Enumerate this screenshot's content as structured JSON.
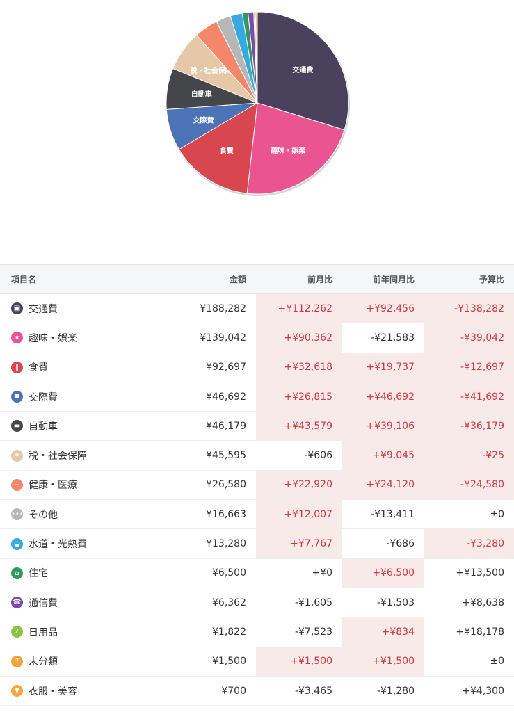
{
  "chart_data": {
    "type": "pie",
    "slices": [
      {
        "label": "交通費",
        "value": 188282,
        "color": "#4a425c",
        "show_label": true
      },
      {
        "label": "趣味・娯楽",
        "value": 139042,
        "color": "#ea5591",
        "show_label": true
      },
      {
        "label": "食費",
        "value": 92697,
        "color": "#d8474f",
        "show_label": true
      },
      {
        "label": "交際費",
        "value": 46692,
        "color": "#4c73b5",
        "show_label": true
      },
      {
        "label": "自動車",
        "value": 46179,
        "color": "#45464a",
        "show_label": true
      },
      {
        "label": "税・社会保障",
        "value": 45595,
        "color": "#e4c8a7",
        "show_label": true
      },
      {
        "label": "健康・医療",
        "value": 26580,
        "color": "#f4876a",
        "show_label": false
      },
      {
        "label": "その他",
        "value": 16663,
        "color": "#b7b7b7",
        "show_label": false
      },
      {
        "label": "水道・光熱費",
        "value": 13280,
        "color": "#36a9df",
        "show_label": false
      },
      {
        "label": "住宅",
        "value": 6500,
        "color": "#2f9a5e",
        "show_label": false
      },
      {
        "label": "通信費",
        "value": 6362,
        "color": "#8048b0",
        "show_label": false
      },
      {
        "label": "日用品",
        "value": 1822,
        "color": "#8bc34a",
        "show_label": false
      },
      {
        "label": "未分類",
        "value": 1500,
        "color": "#f2a33a",
        "show_label": false
      },
      {
        "label": "衣服・美容",
        "value": 700,
        "color": "#f4a73a",
        "show_label": false
      }
    ]
  },
  "table": {
    "headers": {
      "name": "項目名",
      "amount": "金額",
      "prev_month": "前月比",
      "prev_year": "前年同月比",
      "budget": "予算比"
    },
    "rows": [
      {
        "icon": "train-icon",
        "icon_glyph": "▣",
        "icon_color": "#4a425c",
        "name": "交通費",
        "amount": "¥188,282",
        "prev_month": "+¥112,262",
        "prev_month_hl": true,
        "prev_year": "+¥92,456",
        "prev_year_hl": true,
        "budget": "-¥138,282",
        "budget_hl": true
      },
      {
        "icon": "star-icon",
        "icon_glyph": "★",
        "icon_color": "#ea5591",
        "name": "趣味・娯楽",
        "amount": "¥139,042",
        "prev_month": "+¥90,362",
        "prev_month_hl": true,
        "prev_year": "-¥21,583",
        "prev_year_hl": false,
        "budget": "-¥39,042",
        "budget_hl": true
      },
      {
        "icon": "fork-knife-icon",
        "icon_glyph": "‖",
        "icon_color": "#d8474f",
        "name": "食費",
        "amount": "¥92,697",
        "prev_month": "+¥32,618",
        "prev_month_hl": true,
        "prev_year": "+¥19,737",
        "prev_year_hl": true,
        "budget": "-¥12,697",
        "budget_hl": true
      },
      {
        "icon": "people-icon",
        "icon_glyph": "☗",
        "icon_color": "#4c73b5",
        "name": "交際費",
        "amount": "¥46,692",
        "prev_month": "+¥26,815",
        "prev_month_hl": true,
        "prev_year": "+¥46,692",
        "prev_year_hl": true,
        "budget": "-¥41,692",
        "budget_hl": true
      },
      {
        "icon": "car-icon",
        "icon_glyph": "▬",
        "icon_color": "#45464a",
        "name": "自動車",
        "amount": "¥46,179",
        "prev_month": "+¥43,579",
        "prev_month_hl": true,
        "prev_year": "+¥39,106",
        "prev_year_hl": true,
        "budget": "-¥36,179",
        "budget_hl": true
      },
      {
        "icon": "coin-icon",
        "icon_glyph": "¥",
        "icon_color": "#e4c8a7",
        "name": "税・社会保障",
        "amount": "¥45,595",
        "prev_month": "-¥606",
        "prev_month_hl": false,
        "prev_year": "+¥9,045",
        "prev_year_hl": true,
        "budget": "-¥25",
        "budget_hl": true
      },
      {
        "icon": "medical-cross-icon",
        "icon_glyph": "+",
        "icon_color": "#f4876a",
        "name": "健康・医療",
        "amount": "¥26,580",
        "prev_month": "+¥22,920",
        "prev_month_hl": true,
        "prev_year": "+¥24,120",
        "prev_year_hl": true,
        "budget": "-¥24,580",
        "budget_hl": true
      },
      {
        "icon": "dots-icon",
        "icon_glyph": "•••",
        "icon_color": "#b7b7b7",
        "name": "その他",
        "amount": "¥16,663",
        "prev_month": "+¥12,007",
        "prev_month_hl": true,
        "prev_year": "-¥13,411",
        "prev_year_hl": false,
        "budget": "±0",
        "budget_hl": false
      },
      {
        "icon": "faucet-icon",
        "icon_glyph": "◒",
        "icon_color": "#36a9df",
        "name": "水道・光熱費",
        "amount": "¥13,280",
        "prev_month": "+¥7,767",
        "prev_month_hl": true,
        "prev_year": "-¥686",
        "prev_year_hl": false,
        "budget": "-¥3,280",
        "budget_hl": true
      },
      {
        "icon": "house-icon",
        "icon_glyph": "⌂",
        "icon_color": "#2f9a5e",
        "name": "住宅",
        "amount": "¥6,500",
        "prev_month": "+¥0",
        "prev_month_hl": false,
        "prev_year": "+¥6,500",
        "prev_year_hl": true,
        "budget": "+¥13,500",
        "budget_hl": false
      },
      {
        "icon": "phone-icon",
        "icon_glyph": "☎",
        "icon_color": "#8048b0",
        "name": "通信費",
        "amount": "¥6,362",
        "prev_month": "-¥1,605",
        "prev_month_hl": false,
        "prev_year": "-¥1,503",
        "prev_year_hl": false,
        "budget": "+¥8,638",
        "budget_hl": false
      },
      {
        "icon": "leaf-icon",
        "icon_glyph": "⁄",
        "icon_color": "#8bc34a",
        "name": "日用品",
        "amount": "¥1,822",
        "prev_month": "-¥7,523",
        "prev_month_hl": false,
        "prev_year": "+¥834",
        "prev_year_hl": true,
        "budget": "+¥18,178",
        "budget_hl": false
      },
      {
        "icon": "question-icon",
        "icon_glyph": "?",
        "icon_color": "#f2a33a",
        "name": "未分類",
        "amount": "¥1,500",
        "prev_month": "+¥1,500",
        "prev_month_hl": true,
        "prev_year": "+¥1,500",
        "prev_year_hl": true,
        "budget": "±0",
        "budget_hl": false
      },
      {
        "icon": "shirt-icon",
        "icon_glyph": "▼",
        "icon_color": "#f4a73a",
        "name": "衣服・美容",
        "amount": "¥700",
        "prev_month": "-¥3,465",
        "prev_month_hl": false,
        "prev_year": "-¥1,280",
        "prev_year_hl": false,
        "budget": "+¥4,300",
        "budget_hl": false
      }
    ]
  }
}
